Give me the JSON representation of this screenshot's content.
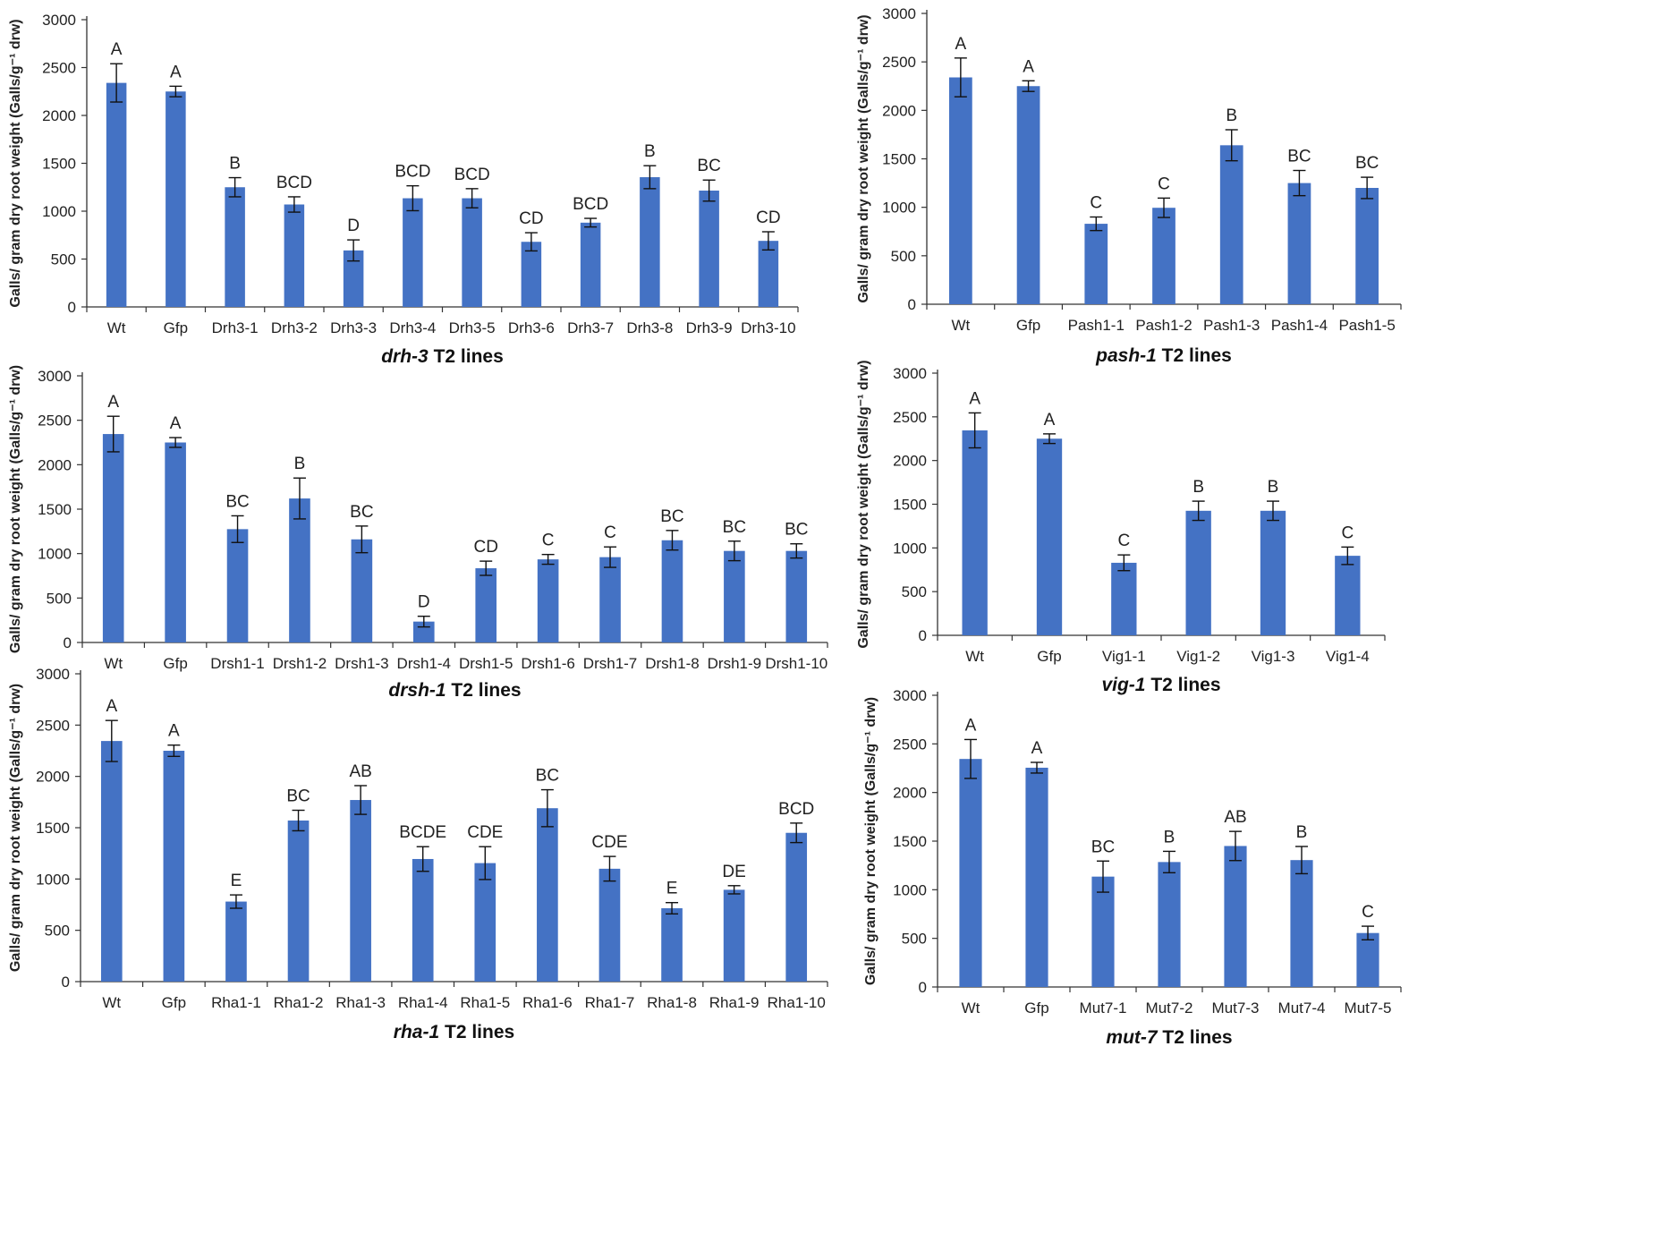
{
  "chart_data": [
    {
      "type": "bar",
      "ylabel": "Galls/ gram dry root weight (Galls/g⁻¹ drw)",
      "xlabel_gene": "drh-3",
      "xlabel_rest": " T2 lines",
      "ylim": [
        0,
        3000
      ],
      "ticks": [
        0,
        500,
        1000,
        1500,
        2000,
        2500,
        3000
      ],
      "categories": [
        "Wt",
        "Gfp",
        "Drh3-1",
        "Drh3-2",
        "Drh3-3",
        "Drh3-4",
        "Drh3-5",
        "Drh3-6",
        "Drh3-7",
        "Drh3-8",
        "Drh3-9",
        "Drh3-10"
      ],
      "values": [
        2340,
        2250,
        1250,
        1070,
        590,
        1135,
        1135,
        680,
        880,
        1355,
        1215,
        690
      ],
      "errors": [
        200,
        55,
        100,
        80,
        110,
        130,
        100,
        95,
        45,
        120,
        110,
        95
      ],
      "letters": [
        "A",
        "A",
        "B",
        "BCD",
        "D",
        "BCD",
        "BCD",
        "CD",
        "BCD",
        "B",
        "BC",
        "CD"
      ]
    },
    {
      "type": "bar",
      "ylabel": "Galls/ gram dry root weight (Galls/g⁻¹ drw)",
      "xlabel_gene": "pash-1",
      "xlabel_rest": " T2 lines",
      "ylim": [
        0,
        3000
      ],
      "ticks": [
        0,
        500,
        1000,
        1500,
        2000,
        2500,
        3000
      ],
      "categories": [
        "Wt",
        "Gfp",
        "Pash1-1",
        "Pash1-2",
        "Pash1-3",
        "Pash1-4",
        "Pash1-5"
      ],
      "values": [
        2340,
        2250,
        830,
        995,
        1640,
        1250,
        1200
      ],
      "errors": [
        200,
        55,
        70,
        100,
        160,
        130,
        110
      ],
      "letters": [
        "A",
        "A",
        "C",
        "C",
        "B",
        "BC",
        "BC"
      ]
    },
    {
      "type": "bar",
      "ylabel": "Galls/ gram dry root weight (Galls/g⁻¹ drw)",
      "xlabel_gene": "drsh-1",
      "xlabel_rest": " T2 lines",
      "ylim": [
        0,
        3000
      ],
      "ticks": [
        0,
        500,
        1000,
        1500,
        2000,
        2500,
        3000
      ],
      "categories": [
        "Wt",
        "Gfp",
        "Drsh1-1",
        "Drsh1-2",
        "Drsh1-3",
        "Drsh1-4",
        "Drsh1-5",
        "Drsh1-6",
        "Drsh1-7",
        "Drsh1-8",
        "Drsh1-9",
        "Drsh1-10"
      ],
      "values": [
        2345,
        2250,
        1275,
        1620,
        1160,
        235,
        835,
        935,
        960,
        1150,
        1030,
        1030
      ],
      "errors": [
        200,
        55,
        150,
        230,
        150,
        60,
        80,
        55,
        115,
        110,
        110,
        80
      ],
      "letters": [
        "A",
        "A",
        "BC",
        "B",
        "BC",
        "D",
        "CD",
        "C",
        "C",
        "BC",
        "BC",
        "BC"
      ]
    },
    {
      "type": "bar",
      "ylabel": "Galls/ gram dry root weight (Galls/g⁻¹ drw)",
      "xlabel_gene": "vig-1",
      "xlabel_rest": " T2 lines",
      "ylim": [
        0,
        3000
      ],
      "ticks": [
        0,
        500,
        1000,
        1500,
        2000,
        2500,
        3000
      ],
      "categories": [
        "Wt",
        "Gfp",
        "Vig1-1",
        "Vig1-2",
        "Vig1-3",
        "Vig1-4"
      ],
      "values": [
        2345,
        2250,
        830,
        1425,
        1425,
        910
      ],
      "errors": [
        200,
        55,
        90,
        110,
        110,
        100
      ],
      "letters": [
        "A",
        "A",
        "C",
        "B",
        "B",
        "C"
      ]
    },
    {
      "type": "bar",
      "ylabel": "Galls/ gram dry root weight (Galls/g⁻¹ drw)",
      "xlabel_gene": "rha-1",
      "xlabel_rest": "  T2 lines",
      "ylim": [
        0,
        3000
      ],
      "ticks": [
        0,
        500,
        1000,
        1500,
        2000,
        2500,
        3000
      ],
      "categories": [
        "Wt",
        "Gfp",
        "Rha1-1",
        "Rha1-2",
        "Rha1-3",
        "Rha1-4",
        "Rha1-5",
        "Rha1-6",
        "Rha1-7",
        "Rha1-8",
        "Rha1-9",
        "Rha1-10"
      ],
      "values": [
        2345,
        2250,
        780,
        1570,
        1770,
        1195,
        1155,
        1690,
        1100,
        715,
        895,
        1450
      ],
      "errors": [
        200,
        55,
        65,
        100,
        140,
        120,
        160,
        180,
        120,
        55,
        40,
        95
      ],
      "letters": [
        "A",
        "A",
        "E",
        "BC",
        "AB",
        "BCDE",
        "CDE",
        "BC",
        "CDE",
        "E",
        "DE",
        "BCD"
      ]
    },
    {
      "type": "bar",
      "ylabel": "Galls/ gram dry root weight (Galls/g⁻¹ drw)",
      "xlabel_gene": "mut-7",
      "xlabel_rest": "  T2 lines",
      "ylim": [
        0,
        3000
      ],
      "ticks": [
        0,
        500,
        1000,
        1500,
        2000,
        2500,
        3000
      ],
      "categories": [
        "Wt",
        "Gfp",
        "Mut7-1",
        "Mut7-2",
        "Mut7-3",
        "Mut7-4",
        "Mut7-5"
      ],
      "values": [
        2345,
        2255,
        1135,
        1285,
        1450,
        1305,
        555
      ],
      "errors": [
        200,
        55,
        160,
        110,
        150,
        140,
        70
      ],
      "letters": [
        "A",
        "A",
        "BC",
        "B",
        "AB",
        "B",
        "C"
      ]
    }
  ]
}
